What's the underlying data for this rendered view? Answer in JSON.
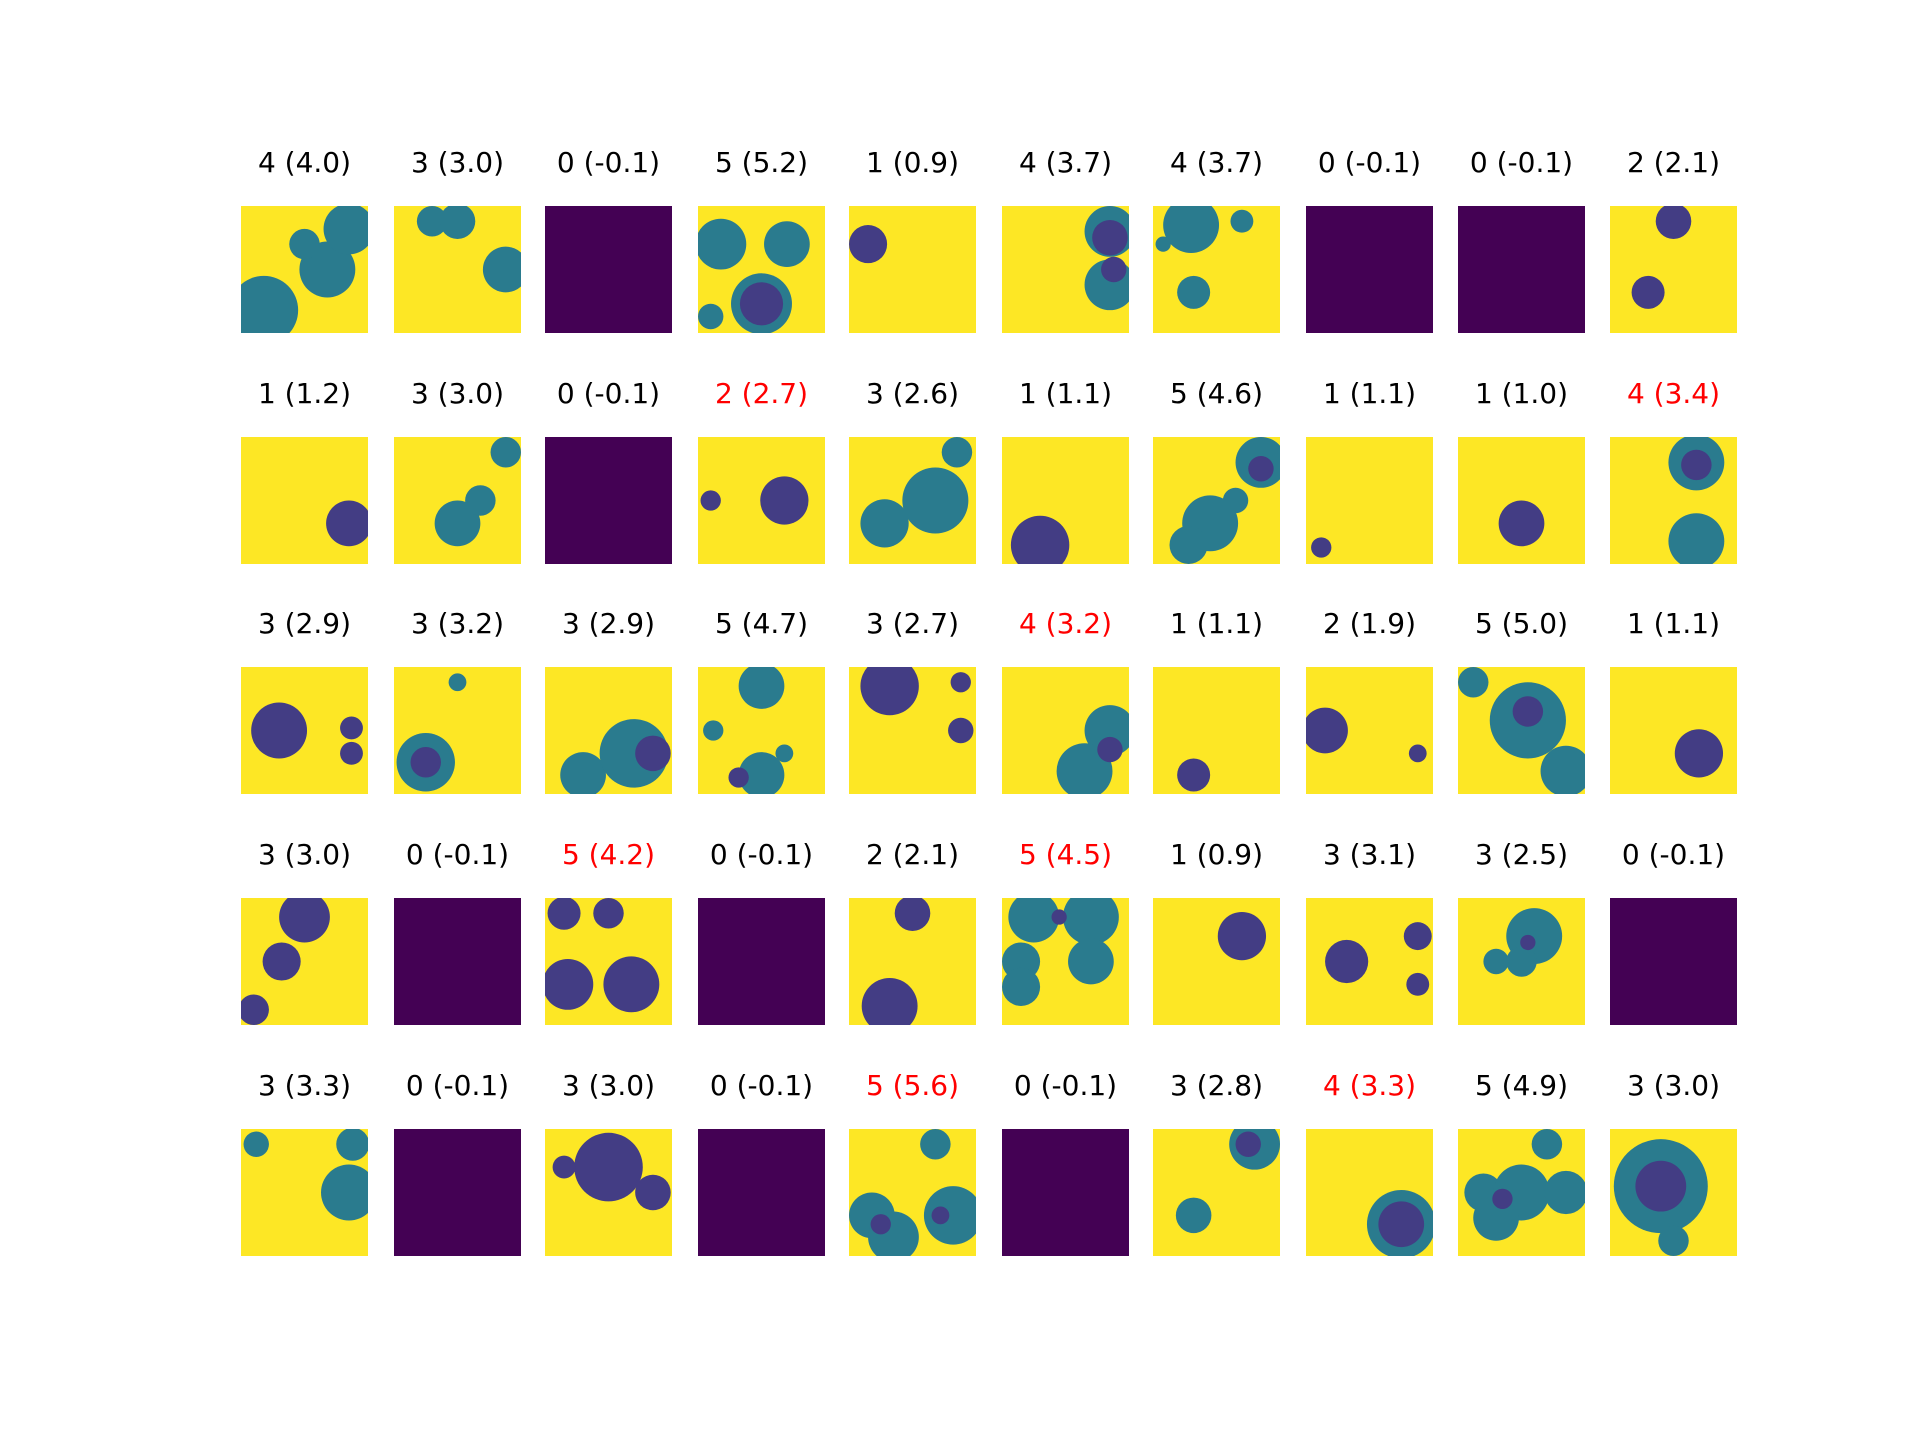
{
  "chart_data": {
    "type": "image-grid",
    "rows": 5,
    "cols": 10,
    "colors": {
      "background": "#fde725",
      "empty": "#440154",
      "object_light": "#2a7b8e",
      "object_dark": "#433d84",
      "title_ok": "#000000",
      "title_error": "#ff0000"
    },
    "panels": [
      {
        "title": "4 (4.0)",
        "error": false
      },
      {
        "title": "3 (3.0)",
        "error": false
      },
      {
        "title": "0 (-0.1)",
        "error": false
      },
      {
        "title": "5 (5.2)",
        "error": false
      },
      {
        "title": "1 (0.9)",
        "error": false
      },
      {
        "title": "4 (3.7)",
        "error": false
      },
      {
        "title": "4 (3.7)",
        "error": false
      },
      {
        "title": "0 (-0.1)",
        "error": false
      },
      {
        "title": "0 (-0.1)",
        "error": false
      },
      {
        "title": "2 (2.1)",
        "error": false
      },
      {
        "title": "1 (1.2)",
        "error": false
      },
      {
        "title": "3 (3.0)",
        "error": false
      },
      {
        "title": "0 (-0.1)",
        "error": false
      },
      {
        "title": "2 (2.7)",
        "error": true
      },
      {
        "title": "3 (2.6)",
        "error": false
      },
      {
        "title": "1 (1.1)",
        "error": false
      },
      {
        "title": "5 (4.6)",
        "error": false
      },
      {
        "title": "1 (1.1)",
        "error": false
      },
      {
        "title": "1 (1.0)",
        "error": false
      },
      {
        "title": "4 (3.4)",
        "error": true
      },
      {
        "title": "3 (2.9)",
        "error": false
      },
      {
        "title": "3 (3.2)",
        "error": false
      },
      {
        "title": "3 (2.9)",
        "error": false
      },
      {
        "title": "5 (4.7)",
        "error": false
      },
      {
        "title": "3 (2.7)",
        "error": false
      },
      {
        "title": "4 (3.2)",
        "error": true
      },
      {
        "title": "1 (1.1)",
        "error": false
      },
      {
        "title": "2 (1.9)",
        "error": false
      },
      {
        "title": "5 (5.0)",
        "error": false
      },
      {
        "title": "1 (1.1)",
        "error": false
      },
      {
        "title": "3 (3.0)",
        "error": false
      },
      {
        "title": "0 (-0.1)",
        "error": false
      },
      {
        "title": "5 (4.2)",
        "error": true
      },
      {
        "title": "0 (-0.1)",
        "error": false
      },
      {
        "title": "2 (2.1)",
        "error": false
      },
      {
        "title": "5 (4.5)",
        "error": true
      },
      {
        "title": "1 (0.9)",
        "error": false
      },
      {
        "title": "3 (3.1)",
        "error": false
      },
      {
        "title": "3 (2.5)",
        "error": false
      },
      {
        "title": "0 (-0.1)",
        "error": false
      },
      {
        "title": "3 (3.3)",
        "error": false
      },
      {
        "title": "0 (-0.1)",
        "error": false
      },
      {
        "title": "3 (3.0)",
        "error": false
      },
      {
        "title": "0 (-0.1)",
        "error": false
      },
      {
        "title": "5 (5.6)",
        "error": true
      },
      {
        "title": "0 (-0.1)",
        "error": false
      },
      {
        "title": "3 (2.8)",
        "error": false
      },
      {
        "title": "4 (3.3)",
        "error": true
      },
      {
        "title": "5 (4.9)",
        "error": false
      },
      {
        "title": "3 (3.0)",
        "error": false
      }
    ]
  }
}
